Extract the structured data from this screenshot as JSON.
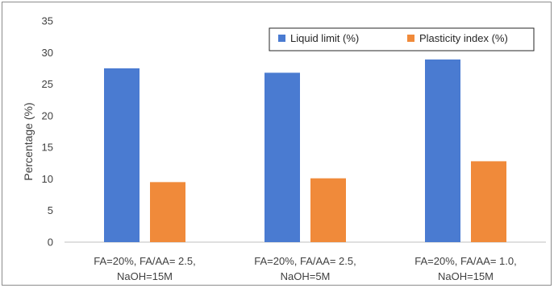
{
  "chart_data": {
    "type": "bar",
    "categories": [
      [
        "FA=20%, FA/AA= 2.5,",
        "NaOH=15M"
      ],
      [
        "FA=20%, FA/AA= 2.5,",
        "NaOH=5M"
      ],
      [
        "FA=20%, FA/AA= 1.0,",
        "NaOH=15M"
      ]
    ],
    "series": [
      {
        "name": "Liquid limit (%)",
        "color": "#4a7bd1",
        "values": [
          27.5,
          26.8,
          28.9
        ]
      },
      {
        "name": "Plasticity index (%)",
        "color": "#f08a3a",
        "values": [
          9.5,
          10.1,
          12.8
        ]
      }
    ],
    "title": "",
    "xlabel": "",
    "ylabel": "Percentage (%)",
    "ylim": [
      0,
      35
    ],
    "yticks": [
      0,
      5,
      10,
      15,
      20,
      25,
      30,
      35
    ],
    "grid": "none",
    "legend_position": "top-right"
  }
}
